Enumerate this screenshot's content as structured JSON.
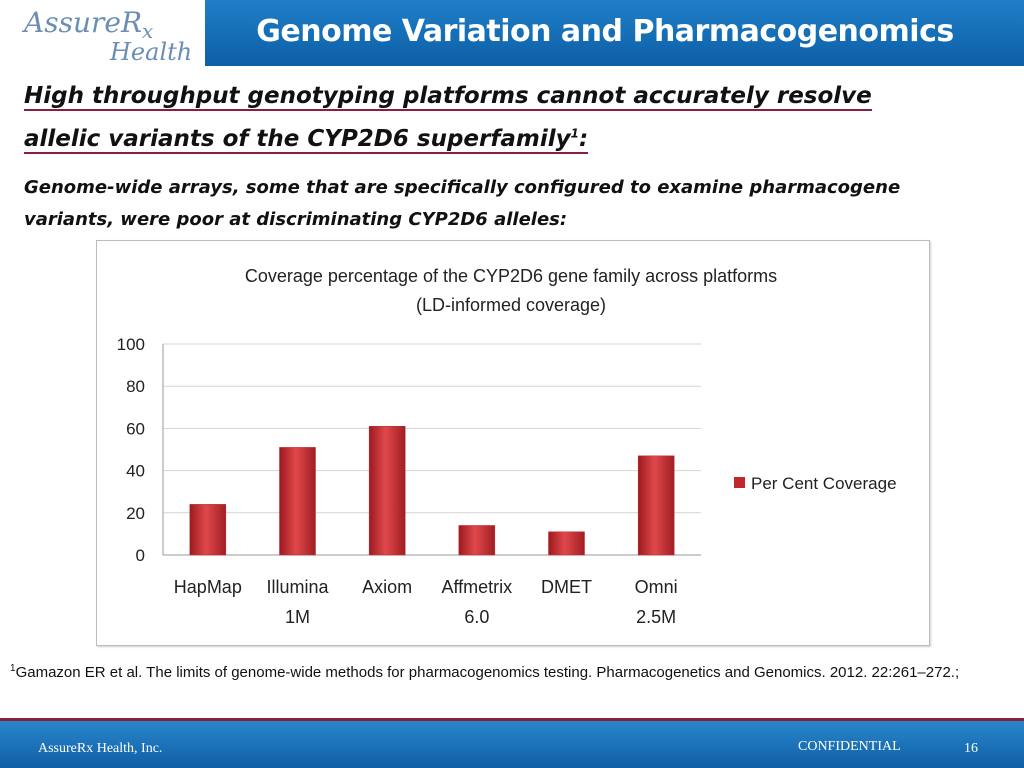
{
  "logo": {
    "line1": "AssureR",
    "line1_sub": "x",
    "line2": "Health"
  },
  "slide_title": "Genome Variation and Pharmacogenomics",
  "heading": {
    "line1": "High throughput genotyping platforms cannot accurately resolve",
    "line2": "allelic variants of the CYP2D6 superfamily",
    "sup": "1",
    "colon": ":"
  },
  "subheading": "Genome-wide arrays, some that are specifically configured to examine pharmacogene variants, were poor at discriminating CYP2D6 alleles:",
  "chart_data": {
    "type": "bar",
    "title": "Coverage percentage of the CYP2D6 gene family across platforms",
    "subtitle": "(LD-informed coverage)",
    "categories": [
      [
        "HapMap"
      ],
      [
        "Illumina",
        "1M"
      ],
      [
        "Axiom"
      ],
      [
        "Affmetrix",
        "6.0"
      ],
      [
        "DMET"
      ],
      [
        "Omni",
        "2.5M"
      ]
    ],
    "series": [
      {
        "name": "Per Cent Coverage",
        "values": [
          24,
          51,
          61,
          14,
          11,
          47
        ],
        "color": "#c0282d"
      }
    ],
    "ylim": [
      0,
      100
    ],
    "yticks": [
      0,
      20,
      40,
      60,
      80,
      100
    ],
    "grid": true,
    "legend_position": "right"
  },
  "footnote": {
    "sup": "1",
    "text": "Gamazon ER et al. The limits of genome-wide methods for pharmacogenomics testing. Pharmacogenetics and Genomics.  2012. 22:261–272.;"
  },
  "footer": {
    "company": "AssureRx Health, Inc.",
    "confidential": "CONFIDENTIAL",
    "page": "16"
  },
  "colors": {
    "header_blue": "#1a75c0",
    "accent": "#8a1f3c",
    "bar": "#c0282d"
  }
}
